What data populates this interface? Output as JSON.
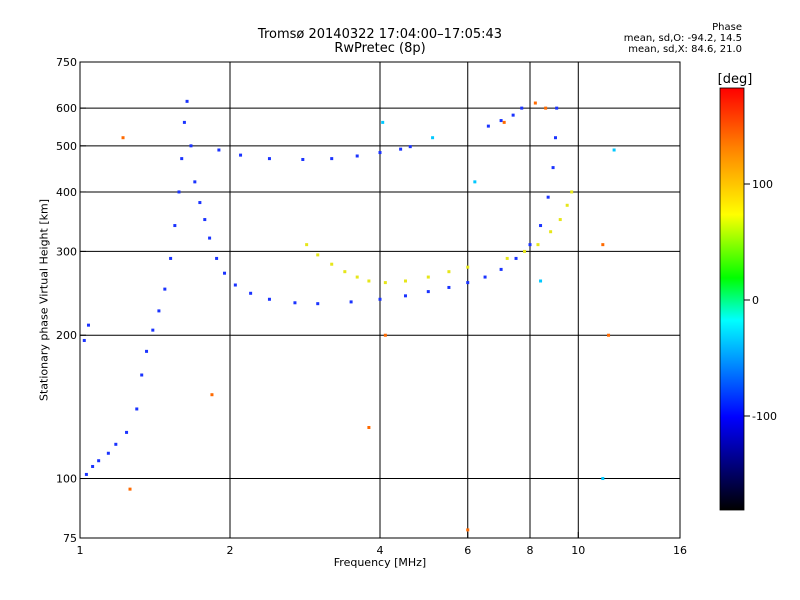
{
  "header": {
    "title": "Tromsø 20140322 17:04:00–17:05:43",
    "subtitle": "RwPretec (8p)"
  },
  "phase_info": {
    "heading": "Phase",
    "o_mode": "mean, sd,O: -94.2, 14.5",
    "x_mode": "mean, sd,X: 84.6, 21.0"
  },
  "colorbar": {
    "label": "[deg]",
    "ticks": [
      "100",
      "0",
      "-100"
    ],
    "stops": [
      "#ff0000",
      "#ff8000",
      "#ffff00",
      "#00ff00",
      "#00ffff",
      "#0000ff",
      "#000000"
    ]
  },
  "chart_data": {
    "type": "scatter",
    "title": "Tromsø 20140322 17:04:00–17:05:43",
    "subtitle": "RwPretec (8p)",
    "xlabel": "Frequency [MHz]",
    "ylabel": "Stationary phase Virtual Height [km]",
    "x_scale": "log2",
    "y_scale": "log",
    "xlim": [
      1,
      16
    ],
    "ylim": [
      75,
      750
    ],
    "x_ticks": [
      1,
      2,
      4,
      6,
      8,
      10,
      16
    ],
    "y_ticks": [
      75,
      100,
      200,
      300,
      400,
      500,
      600,
      750
    ],
    "x_gridlines": [
      2,
      4,
      6,
      8,
      10
    ],
    "y_gridlines": [
      100,
      200,
      300,
      400,
      500,
      600
    ],
    "color_scale": "phase (deg)",
    "series": [
      {
        "color": "#1a33ff",
        "points": [
          [
            1.02,
            195
          ],
          [
            1.04,
            210
          ],
          [
            1.03,
            102
          ],
          [
            1.06,
            106
          ],
          [
            1.09,
            109
          ],
          [
            1.14,
            113
          ],
          [
            1.18,
            118
          ],
          [
            1.24,
            125
          ],
          [
            1.3,
            140
          ],
          [
            1.33,
            165
          ],
          [
            1.36,
            185
          ],
          [
            1.4,
            205
          ],
          [
            1.44,
            225
          ],
          [
            1.48,
            250
          ],
          [
            1.52,
            290
          ],
          [
            1.55,
            340
          ],
          [
            1.58,
            400
          ],
          [
            1.6,
            470
          ],
          [
            1.62,
            560
          ],
          [
            1.64,
            620
          ],
          [
            1.67,
            500
          ],
          [
            1.7,
            420
          ],
          [
            1.74,
            380
          ],
          [
            1.78,
            350
          ],
          [
            1.82,
            320
          ],
          [
            1.88,
            290
          ],
          [
            1.95,
            270
          ],
          [
            2.05,
            255
          ],
          [
            2.2,
            245
          ],
          [
            2.4,
            238
          ],
          [
            2.7,
            234
          ],
          [
            3.0,
            233
          ],
          [
            3.5,
            235
          ],
          [
            4.0,
            238
          ],
          [
            4.5,
            242
          ],
          [
            5.0,
            247
          ],
          [
            5.5,
            252
          ],
          [
            6.0,
            258
          ],
          [
            6.5,
            265
          ],
          [
            7.0,
            275
          ],
          [
            7.5,
            290
          ],
          [
            8.0,
            310
          ],
          [
            8.4,
            340
          ],
          [
            8.7,
            390
          ],
          [
            8.9,
            450
          ],
          [
            9.0,
            520
          ],
          [
            9.05,
            600
          ],
          [
            1.9,
            490
          ],
          [
            2.1,
            478
          ],
          [
            2.4,
            470
          ],
          [
            2.8,
            468
          ],
          [
            3.2,
            470
          ],
          [
            3.6,
            476
          ],
          [
            4.0,
            484
          ],
          [
            4.4,
            492
          ],
          [
            4.6,
            498
          ],
          [
            6.6,
            550
          ],
          [
            7.0,
            565
          ],
          [
            7.4,
            580
          ],
          [
            7.7,
            600
          ]
        ]
      },
      {
        "color": "#e6e619",
        "points": [
          [
            2.85,
            310
          ],
          [
            3.0,
            295
          ],
          [
            3.2,
            282
          ],
          [
            3.4,
            272
          ],
          [
            3.6,
            265
          ],
          [
            3.8,
            260
          ],
          [
            4.1,
            258
          ],
          [
            4.5,
            260
          ],
          [
            5.0,
            265
          ],
          [
            5.5,
            272
          ],
          [
            6.0,
            278
          ],
          [
            7.2,
            290
          ],
          [
            7.8,
            300
          ],
          [
            8.3,
            310
          ],
          [
            8.8,
            330
          ],
          [
            9.2,
            350
          ],
          [
            9.5,
            375
          ],
          [
            9.7,
            400
          ]
        ]
      },
      {
        "color": "#ff6a00",
        "points": [
          [
            1.22,
            520
          ],
          [
            1.26,
            95
          ],
          [
            1.84,
            150
          ],
          [
            3.8,
            128
          ],
          [
            4.1,
            200
          ],
          [
            6.0,
            78
          ],
          [
            7.1,
            560
          ],
          [
            8.2,
            615
          ],
          [
            8.6,
            600
          ],
          [
            11.2,
            310
          ],
          [
            11.5,
            200
          ]
        ]
      },
      {
        "color": "#00c8ff",
        "points": [
          [
            4.05,
            560
          ],
          [
            5.1,
            520
          ],
          [
            6.2,
            420
          ],
          [
            8.4,
            260
          ],
          [
            11.2,
            100
          ],
          [
            11.8,
            490
          ]
        ]
      }
    ]
  }
}
